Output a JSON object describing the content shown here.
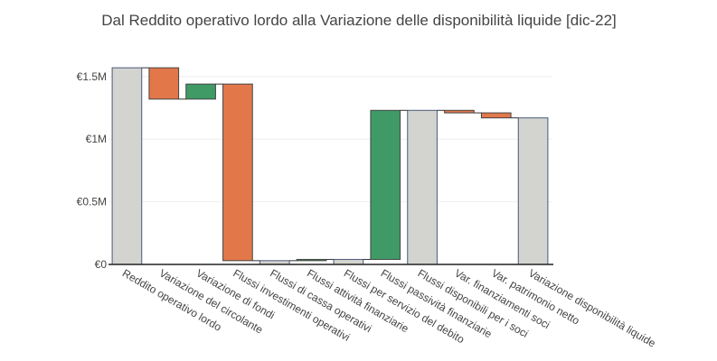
{
  "chart_data": {
    "type": "waterfall",
    "title": "Dal Reddito operativo lordo alla Variazione delle disponibilità liquide [dic-22]",
    "categories": [
      "Reddito operativo lordo",
      "Variazione del circolante",
      "Variazione di fondi",
      "Flussi investimenti operativi",
      "Flussi di cassa operativi",
      "Flussi attività finanziarie",
      "Flussi per servizio del debito",
      "Flussi passività finanziarie",
      "Flussi disponibili per i soci",
      "Var. finanziamenti soci",
      "Var. patrimonio netto",
      "Variazione disponibilità liquide"
    ],
    "measures": [
      "total",
      "relative",
      "relative",
      "relative",
      "total",
      "relative",
      "total",
      "relative",
      "total",
      "relative",
      "relative",
      "total"
    ],
    "values": [
      1570000,
      -250000,
      120000,
      -1410000,
      30000,
      10000,
      40000,
      1190000,
      1230000,
      -20000,
      -40000,
      1170000
    ],
    "colors": {
      "total": "#d3d3cf",
      "increase": "#3f9a66",
      "decrease": "#e2784a"
    },
    "ylim": [
      0,
      1650000
    ],
    "yticks": [
      {
        "value": 0,
        "label": "€0"
      },
      {
        "value": 500000,
        "label": "€0.5M"
      },
      {
        "value": 1000000,
        "label": "€1M"
      },
      {
        "value": 1500000,
        "label": "€1.5M"
      }
    ],
    "grid": true
  }
}
